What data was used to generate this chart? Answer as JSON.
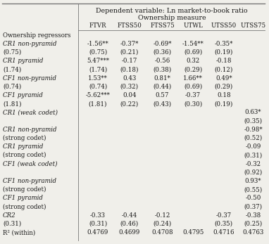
{
  "title1": "Dependent variable: Ln market-to-book ratio",
  "title2": "Ownership measure",
  "col_headers": [
    "FTVR",
    "FTSS50",
    "FTSS75",
    "UTWL",
    "UTSS50",
    "UTSS75"
  ],
  "rows": [
    {
      "label": "Ownership regressors",
      "label_italic": false,
      "vals": [
        "",
        "",
        "",
        "",
        "",
        ""
      ]
    },
    {
      "label": "CR1 non-pyramid",
      "label_italic": true,
      "vals": [
        "-1.56**",
        "-0.37*",
        "-0.69*",
        "-1.54**",
        "-0.35*",
        ""
      ]
    },
    {
      "label": "(0.75)",
      "label_italic": false,
      "vals": [
        "(0.21)",
        "(0.36)",
        "(0.69)",
        "(0.19)",
        "",
        ""
      ],
      "is_se_left": true
    },
    {
      "label": "CR1 pyramid",
      "label_italic": true,
      "vals": [
        "5.47***",
        "-0.17",
        "-0.56",
        "0.32",
        "-0.18",
        ""
      ]
    },
    {
      "label": "(1.74)",
      "label_italic": false,
      "vals": [
        "(0.18)",
        "(0.38)",
        "(0.29)",
        "(0.12)",
        "",
        ""
      ],
      "is_se_left": true
    },
    {
      "label": "CF1 non-pyramid",
      "label_italic": true,
      "vals": [
        "1.53**",
        "0.43",
        "0.81*",
        "1.66**",
        "0.49*",
        ""
      ]
    },
    {
      "label": "(0.74)",
      "label_italic": false,
      "vals": [
        "(0.32)",
        "(0.44)",
        "(0.69)",
        "(0.29)",
        "",
        ""
      ],
      "is_se_left": true
    },
    {
      "label": "CF1 pyramid",
      "label_italic": true,
      "vals": [
        "-5.62***",
        "0.04",
        "0.57",
        "-0.37",
        "0.18",
        ""
      ]
    },
    {
      "label": "(1.81)",
      "label_italic": false,
      "vals": [
        "(0.22)",
        "(0.43)",
        "(0.30)",
        "(0.19)",
        "",
        ""
      ],
      "is_se_left": true
    },
    {
      "label": "CR1 (weak codet)",
      "label_italic": true,
      "vals": [
        "",
        "",
        "",
        "",
        "",
        "0.63*"
      ]
    },
    {
      "label": "",
      "label_italic": false,
      "vals": [
        "",
        "",
        "",
        "",
        "",
        "(0.35)"
      ]
    },
    {
      "label": "CR1 non-pyramid",
      "label_italic": true,
      "vals": [
        "",
        "",
        "",
        "",
        "",
        "-0.98*"
      ]
    },
    {
      "label": "(strong codet)",
      "label_italic": false,
      "vals": [
        "",
        "",
        "",
        "",
        "",
        "(0.52)"
      ]
    },
    {
      "label": "CR1 pyramid",
      "label_italic": true,
      "vals": [
        "",
        "",
        "",
        "",
        "",
        "-0.09"
      ]
    },
    {
      "label": "(strong codet)",
      "label_italic": false,
      "vals": [
        "",
        "",
        "",
        "",
        "",
        "(0.31)"
      ]
    },
    {
      "label": "CF1 (weak codet)",
      "label_italic": true,
      "vals": [
        "",
        "",
        "",
        "",
        "",
        "-0.32"
      ]
    },
    {
      "label": "",
      "label_italic": false,
      "vals": [
        "",
        "",
        "",
        "",
        "",
        "(0.92)"
      ]
    },
    {
      "label": "CF1 non-pyramid",
      "label_italic": true,
      "vals": [
        "",
        "",
        "",
        "",
        "",
        "0.93*"
      ]
    },
    {
      "label": "(strong codet)",
      "label_italic": false,
      "vals": [
        "",
        "",
        "",
        "",
        "",
        "(0.55)"
      ]
    },
    {
      "label": "CF1 pyramid",
      "label_italic": true,
      "vals": [
        "",
        "",
        "",
        "",
        "",
        "-0.50"
      ]
    },
    {
      "label": "(strong codet)",
      "label_italic": false,
      "vals": [
        "",
        "",
        "",
        "",
        "",
        "(0.37)"
      ]
    },
    {
      "label": "CR2",
      "label_italic": true,
      "vals": [
        "-0.33",
        "-0.44",
        "-0.12",
        "",
        "-0.37",
        "-0.38"
      ]
    },
    {
      "label": "(0.31)",
      "label_italic": false,
      "vals": [
        "(0.46)",
        "(0.24)",
        "",
        "(0.35)",
        "(0.25)",
        ""
      ],
      "is_se_left": true
    },
    {
      "label": "R² (within)",
      "label_italic": false,
      "vals": [
        "0.4769",
        "0.4699",
        "0.4708",
        "0.4795",
        "0.4716",
        "0.4763"
      ]
    }
  ],
  "bg_color": "#f0efea",
  "text_color": "#1a1a1a",
  "line_color": "#777777",
  "fontsize": 6.2,
  "header_fontsize": 6.8
}
